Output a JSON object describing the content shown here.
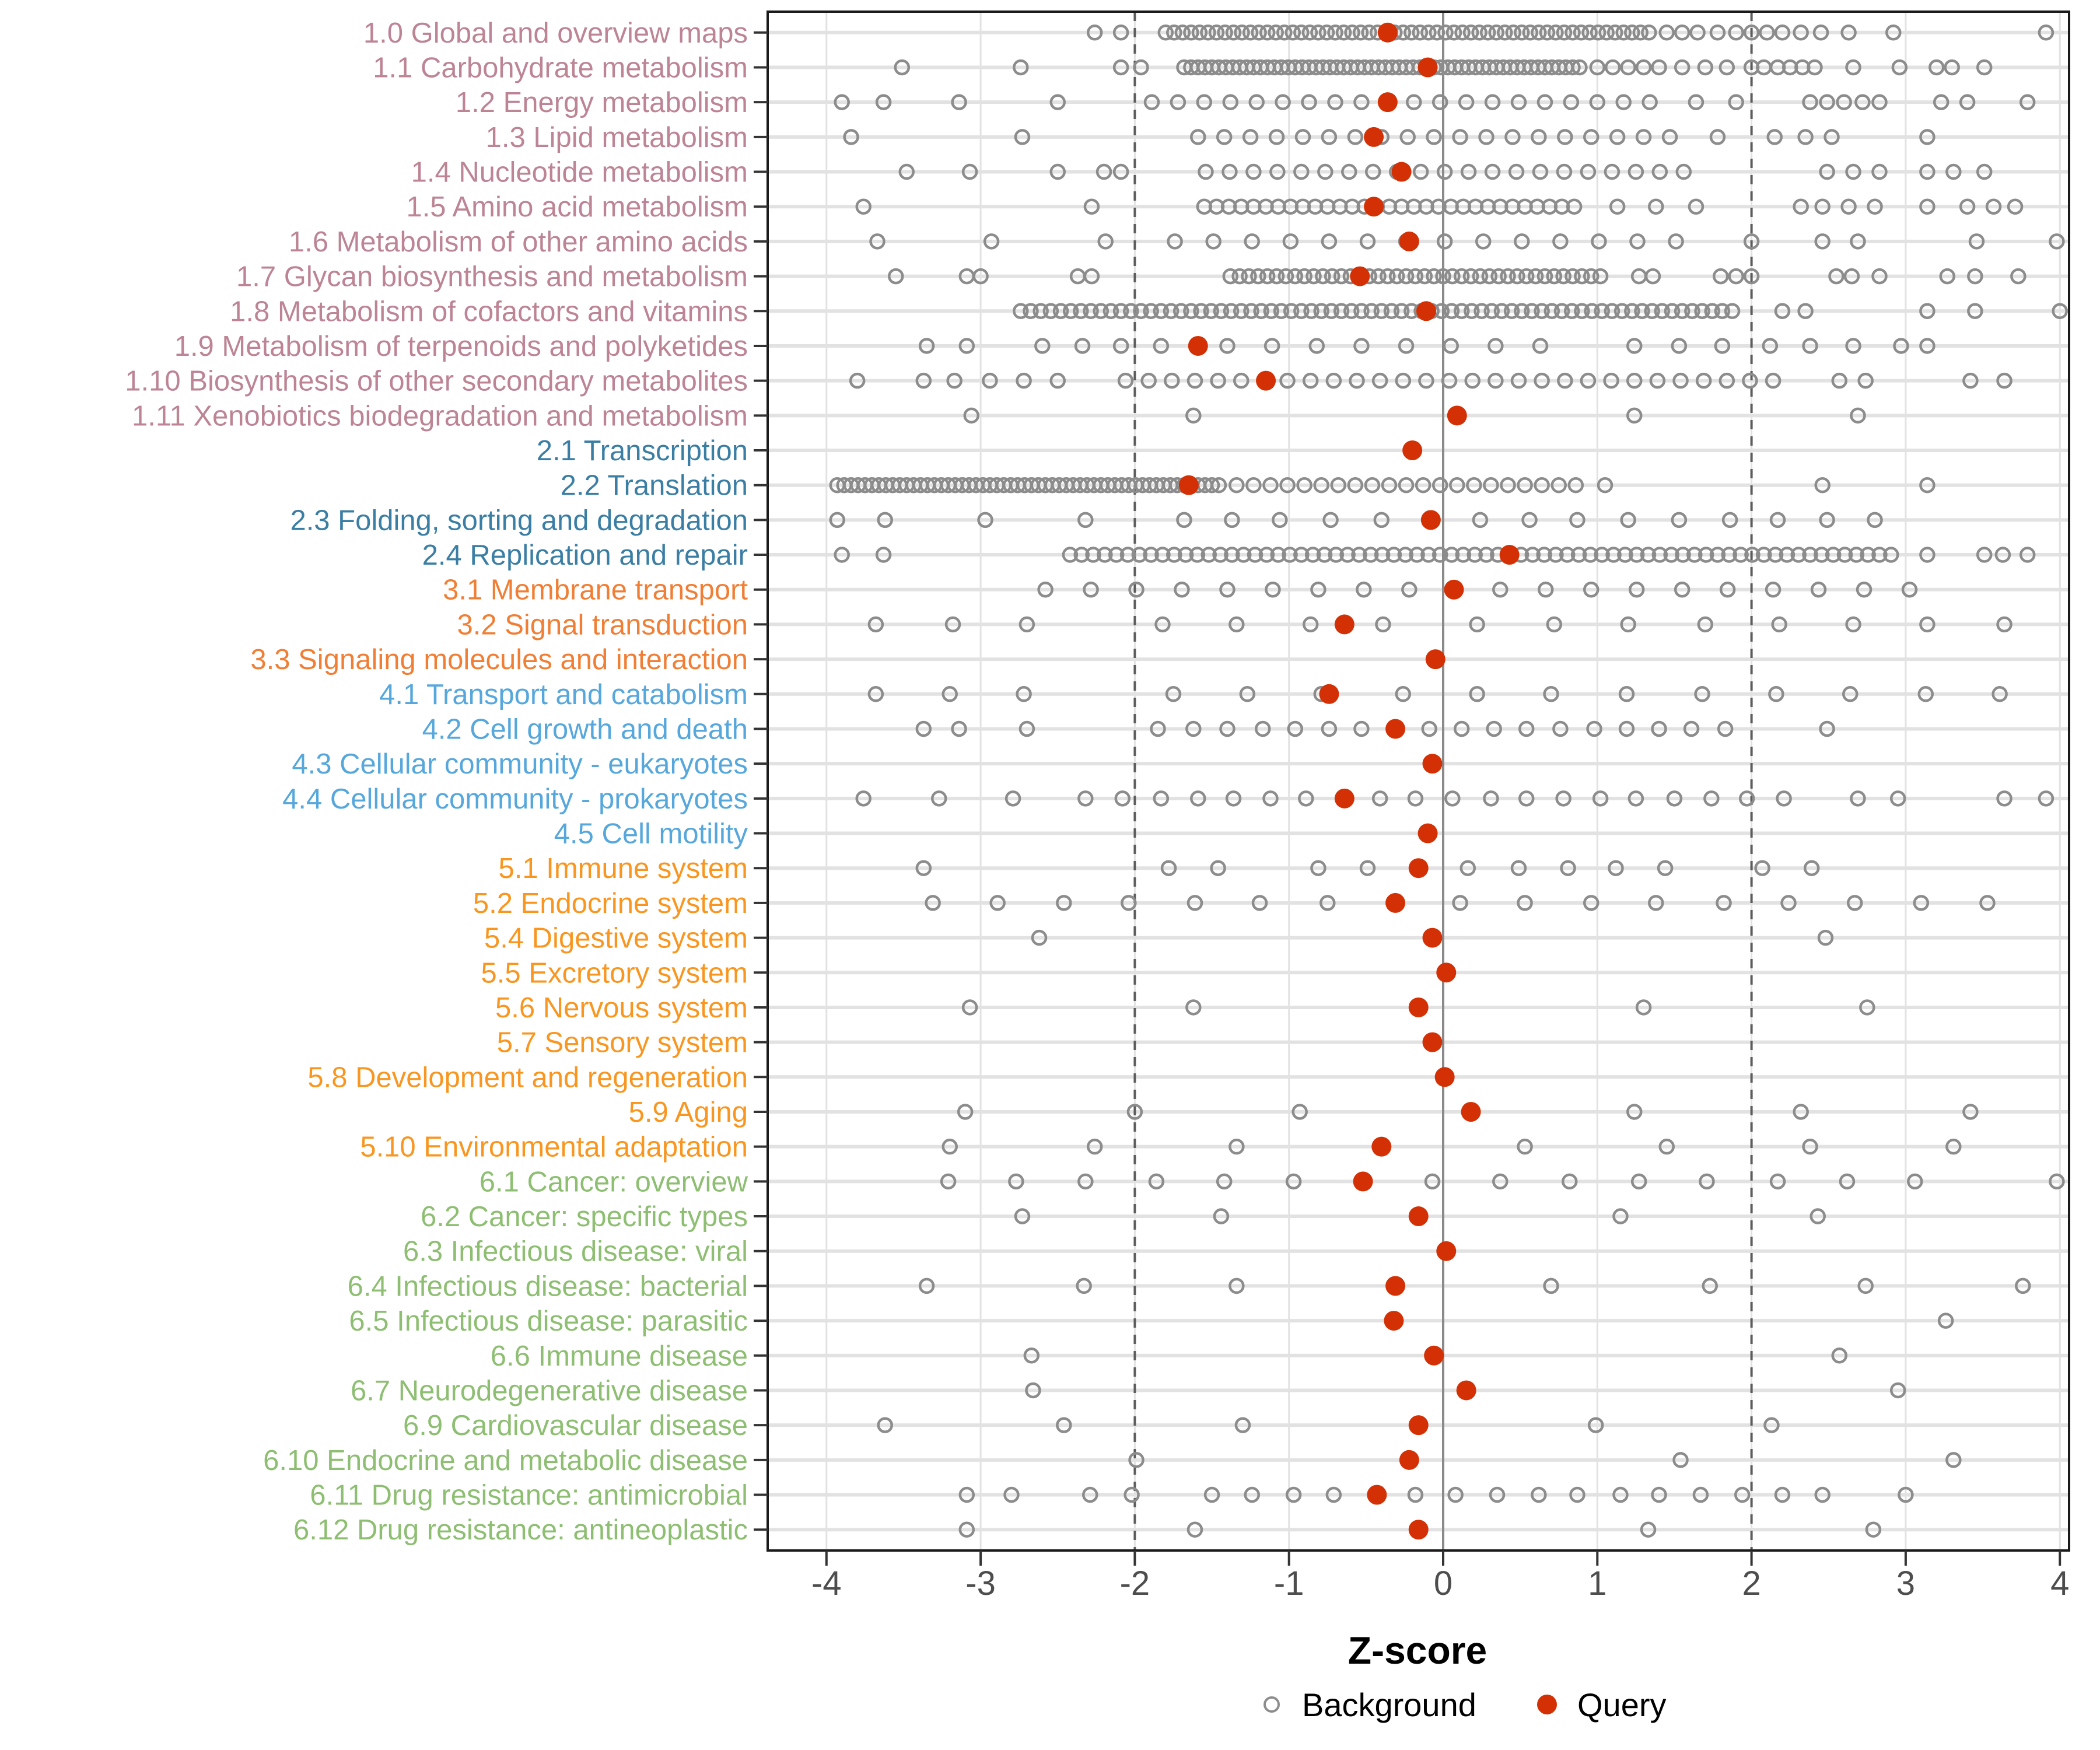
{
  "chart_data": {
    "type": "scatter",
    "variant": "categorical-strip-plot",
    "title": "",
    "xlabel": "Z-score",
    "x_ticks": [
      -4,
      -3,
      -2,
      -1,
      0,
      1,
      2,
      3,
      4
    ],
    "xlim": [
      -4.38,
      4.07
    ],
    "grid": "on",
    "reference_lines": {
      "solid": [
        0
      ],
      "dashed": [
        -2,
        2
      ]
    },
    "legend_position": "bottom",
    "legend": [
      {
        "label": "Background",
        "marker": "open-circle",
        "color": "#8C8C8C"
      },
      {
        "label": "Query",
        "marker": "filled-circle",
        "color": "#D33105"
      }
    ],
    "group_colors": {
      "1": "#BC8494",
      "2": "#3B7EA4",
      "3": "#F07E34",
      "4": "#56A7DB",
      "5": "#F89620",
      "6": "#8DBE71"
    },
    "style": {
      "background_stroke": "#8C8C8C",
      "query_fill": "#D33105",
      "gridline_color": "#E2E2E2",
      "zero_line_color": "#8A8A8A",
      "dashed_line_color": "#5C5C5C",
      "axis_text_color": "#4D4D4D",
      "panel_border_color": "#1A1A1A"
    },
    "categories": [
      {
        "label": "1.0 Global and overview maps",
        "group": "1",
        "query": -0.36,
        "background": [
          -2.26,
          -2.09,
          {
            "from": -1.8,
            "to": 1.35,
            "step": 0.055
          },
          1.45,
          1.55,
          1.65,
          1.78,
          1.9,
          2.0,
          2.1,
          2.2,
          2.32,
          2.45,
          2.63,
          2.92,
          3.91
        ]
      },
      {
        "label": "1.1 Carbohydrate metabolism",
        "group": "1",
        "query": -0.1,
        "background": [
          -3.51,
          -2.74,
          -2.09,
          -1.96,
          {
            "from": -1.68,
            "to": 0.9,
            "step": 0.045
          },
          1.0,
          1.1,
          1.2,
          1.3,
          1.4,
          1.55,
          1.7,
          1.84,
          2.0,
          2.08,
          2.17,
          2.25,
          2.33,
          2.41,
          2.66,
          2.96,
          3.2,
          3.3,
          3.51
        ]
      },
      {
        "label": "1.2 Energy metabolism",
        "group": "1",
        "query": -0.36,
        "background": [
          -3.9,
          -3.63,
          -3.14,
          -2.5,
          {
            "from": -1.89,
            "to": 1.48,
            "step": 0.17
          },
          1.64,
          1.9,
          2.38,
          2.49,
          2.6,
          2.72,
          2.83,
          3.23,
          3.4,
          3.79
        ]
      },
      {
        "label": "1.3 Lipid metabolism",
        "group": "1",
        "query": -0.45,
        "background": [
          -3.84,
          -2.73,
          {
            "from": -1.59,
            "to": 1.47,
            "step": 0.17
          },
          1.78,
          2.15,
          2.35,
          2.52,
          3.14
        ]
      },
      {
        "label": "1.4 Nucleotide metabolism",
        "group": "1",
        "query": -0.27,
        "background": [
          -3.48,
          -3.07,
          -2.5,
          -2.2,
          -2.09,
          {
            "from": -1.54,
            "to": 1.56,
            "step": 0.155
          },
          2.49,
          2.66,
          2.83,
          3.14,
          3.31,
          3.51
        ]
      },
      {
        "label": "1.5 Amino acid metabolism",
        "group": "1",
        "query": -0.45,
        "background": [
          -3.76,
          -2.28,
          {
            "from": -1.55,
            "to": 0.9,
            "step": 0.08
          },
          1.13,
          1.38,
          1.64,
          2.32,
          2.46,
          2.63,
          2.8,
          3.14,
          3.4,
          3.57,
          3.71
        ]
      },
      {
        "label": "1.6 Metabolism of other amino acids",
        "group": "1",
        "query": -0.22,
        "background": [
          -3.67,
          -2.93,
          -2.19,
          {
            "from": -1.74,
            "to": 1.75,
            "step": 0.25
          },
          2.0,
          2.46,
          2.69,
          3.46,
          3.98
        ]
      },
      {
        "label": "1.7 Glycan biosynthesis and metabolism",
        "group": "1",
        "query": -0.54,
        "background": [
          -3.55,
          -3.09,
          -3.0,
          -2.37,
          -2.28,
          {
            "from": -1.38,
            "to": 1.02,
            "step": 0.06
          },
          1.27,
          1.36,
          1.8,
          1.9,
          2.0,
          2.55,
          2.65,
          2.83,
          3.27,
          3.45,
          3.73
        ]
      },
      {
        "label": "1.8 Metabolism of cofactors and vitamins",
        "group": "1",
        "query": -0.11,
        "background": [
          {
            "from": -2.74,
            "to": 1.9,
            "step": 0.065
          },
          2.2,
          2.35,
          3.14,
          3.45,
          4.0
        ]
      },
      {
        "label": "1.9 Metabolism of terpenoids and polyketides",
        "group": "1",
        "query": -1.59,
        "background": [
          -3.35,
          -3.09,
          -2.6,
          -2.34,
          -2.09,
          -1.83,
          {
            "from": -1.4,
            "to": 0.9,
            "step": 0.29
          },
          1.24,
          1.53,
          1.81,
          2.12,
          2.38,
          2.66,
          2.97,
          3.14
        ]
      },
      {
        "label": "1.10 Biosynthesis of other secondary metabolites",
        "group": "1",
        "query": -1.15,
        "background": [
          -3.8,
          -3.37,
          -3.17,
          -2.94,
          -2.72,
          -2.5,
          {
            "from": -2.06,
            "to": 2.28,
            "step": 0.15
          },
          2.57,
          2.74,
          3.42,
          3.64
        ]
      },
      {
        "label": "1.11 Xenobiotics biodegradation and metabolism",
        "group": "1",
        "query": 0.09,
        "background": [
          -3.06,
          -1.62,
          1.24,
          2.69
        ]
      },
      {
        "label": "2.1 Transcription",
        "group": "2",
        "query": -0.2,
        "background": []
      },
      {
        "label": "2.2 Translation",
        "group": "2",
        "query": -1.65,
        "background": [
          {
            "from": -3.93,
            "to": -1.45,
            "step": 0.045
          },
          {
            "from": -1.34,
            "to": 0.87,
            "step": 0.11
          },
          1.05,
          2.46,
          3.14
        ]
      },
      {
        "label": "2.3 Folding, sorting and degradation",
        "group": "2",
        "query": -0.08,
        "background": [
          -3.93,
          -3.62,
          -2.97,
          -2.32,
          -1.68,
          -1.37,
          -1.06,
          -0.73,
          -0.4,
          0.24,
          0.56,
          0.87,
          1.2,
          1.53,
          1.86,
          2.17,
          2.49,
          2.8
        ]
      },
      {
        "label": "2.4 Replication and repair",
        "group": "2",
        "query": 0.43,
        "background": [
          -3.9,
          -3.63,
          {
            "from": -2.42,
            "to": 2.92,
            "step": 0.075
          },
          3.14,
          3.51,
          3.63,
          3.79
        ]
      },
      {
        "label": "3.1 Membrane transport",
        "group": "3",
        "query": 0.07,
        "background": [
          {
            "from": -2.58,
            "to": 3.03,
            "step": 0.295
          }
        ]
      },
      {
        "label": "3.2 Signal transduction",
        "group": "3",
        "query": -0.64,
        "background": [
          -3.68,
          -3.18,
          -2.7,
          -1.82,
          -1.34,
          -0.86,
          -0.39,
          0.22,
          0.72,
          1.2,
          1.7,
          2.18,
          2.66,
          3.14,
          3.64
        ]
      },
      {
        "label": "3.3 Signaling molecules and interaction",
        "group": "3",
        "query": -0.05,
        "background": []
      },
      {
        "label": "4.1 Transport and catabolism",
        "group": "4",
        "query": -0.74,
        "background": [
          -3.68,
          -3.2,
          -2.72,
          -1.75,
          -1.27,
          -0.79,
          -0.26,
          0.22,
          0.7,
          1.19,
          1.68,
          2.16,
          2.64,
          3.13,
          3.61
        ]
      },
      {
        "label": "4.2 Cell growth and death",
        "group": "4",
        "query": -0.31,
        "background": [
          -3.37,
          -3.14,
          -2.7,
          -1.85,
          -1.62,
          -1.4,
          -1.17,
          -0.96,
          -0.74,
          -0.53,
          -0.09,
          0.12,
          0.33,
          0.54,
          0.76,
          0.98,
          1.19,
          1.4,
          1.61,
          1.83,
          2.49
        ]
      },
      {
        "label": "4.3 Cellular community - eukaryotes",
        "group": "4",
        "query": -0.07,
        "background": []
      },
      {
        "label": "4.4 Cellular community - prokaryotes",
        "group": "4",
        "query": -0.64,
        "background": [
          -3.76,
          -3.27,
          -2.79,
          -2.32,
          -2.08,
          -1.83,
          -1.59,
          -1.36,
          -1.12,
          -0.89,
          -0.41,
          -0.18,
          0.06,
          0.31,
          0.54,
          0.78,
          1.02,
          1.25,
          1.5,
          1.74,
          1.97,
          2.21,
          2.69,
          2.95,
          3.64,
          3.91
        ]
      },
      {
        "label": "4.5 Cell motility",
        "group": "4",
        "query": -0.1,
        "background": []
      },
      {
        "label": "5.1 Immune system",
        "group": "5",
        "query": -0.16,
        "background": [
          -3.37,
          -1.78,
          -1.46,
          -0.81,
          -0.49,
          0.16,
          0.49,
          0.81,
          1.12,
          1.44,
          2.07,
          2.39
        ]
      },
      {
        "label": "5.2 Endocrine system",
        "group": "5",
        "query": -0.31,
        "background": [
          -3.31,
          -2.89,
          -2.46,
          -2.04,
          -1.61,
          -1.19,
          -0.75,
          0.11,
          0.53,
          0.96,
          1.38,
          1.82,
          2.24,
          2.67,
          3.1,
          3.53
        ]
      },
      {
        "label": "5.4 Digestive system",
        "group": "5",
        "query": -0.07,
        "background": [
          -2.62,
          2.48
        ]
      },
      {
        "label": "5.5 Excretory system",
        "group": "5",
        "query": 0.02,
        "background": []
      },
      {
        "label": "5.6 Nervous system",
        "group": "5",
        "query": -0.16,
        "background": [
          -3.07,
          -1.62,
          1.3,
          2.75
        ]
      },
      {
        "label": "5.7 Sensory system",
        "group": "5",
        "query": -0.07,
        "background": []
      },
      {
        "label": "5.8 Development and regeneration",
        "group": "5",
        "query": 0.01,
        "background": []
      },
      {
        "label": "5.9 Aging",
        "group": "5",
        "query": 0.18,
        "background": [
          -3.1,
          -2.0,
          -0.93,
          1.24,
          2.32,
          3.42
        ]
      },
      {
        "label": "5.10 Environmental adaptation",
        "group": "5",
        "query": -0.4,
        "background": [
          -3.2,
          -2.26,
          -1.34,
          0.53,
          1.45,
          2.38,
          3.31
        ]
      },
      {
        "label": "6.1 Cancer: overview",
        "group": "6",
        "query": -0.52,
        "background": [
          -3.21,
          -2.77,
          -2.32,
          -1.86,
          -1.42,
          -0.97,
          -0.07,
          0.37,
          0.82,
          1.27,
          1.71,
          2.17,
          2.62,
          3.06,
          3.98
        ]
      },
      {
        "label": "6.2 Cancer: specific types",
        "group": "6",
        "query": -0.16,
        "background": [
          -2.73,
          -1.44,
          1.15,
          2.43
        ]
      },
      {
        "label": "6.3 Infectious disease: viral",
        "group": "6",
        "query": 0.02,
        "background": []
      },
      {
        "label": "6.4 Infectious disease: bacterial",
        "group": "6",
        "query": -0.31,
        "background": [
          -3.35,
          -2.33,
          -1.34,
          0.7,
          1.73,
          2.74,
          3.76
        ]
      },
      {
        "label": "6.5 Infectious disease: parasitic",
        "group": "6",
        "query": -0.32,
        "background": [
          3.26
        ]
      },
      {
        "label": "6.6 Immune disease",
        "group": "6",
        "query": -0.06,
        "background": [
          -2.67,
          2.57
        ]
      },
      {
        "label": "6.7 Neurodegenerative disease",
        "group": "6",
        "query": 0.15,
        "background": [
          -2.66,
          2.95
        ]
      },
      {
        "label": "6.9 Cardiovascular disease",
        "group": "6",
        "query": -0.16,
        "background": [
          -3.62,
          -2.46,
          -1.3,
          0.99,
          2.13
        ]
      },
      {
        "label": "6.10 Endocrine and metabolic disease",
        "group": "6",
        "query": -0.22,
        "background": [
          -1.99,
          1.54,
          3.31
        ]
      },
      {
        "label": "6.11 Drug resistance: antimicrobial",
        "group": "6",
        "query": -0.43,
        "background": [
          -3.09,
          -2.8,
          -2.29,
          -2.02,
          -1.5,
          -1.24,
          -0.97,
          -0.71,
          -0.18,
          0.08,
          0.35,
          0.62,
          0.87,
          1.15,
          1.4,
          1.67,
          1.94,
          2.2,
          2.46,
          3.0
        ]
      },
      {
        "label": "6.12 Drug resistance: antineoplastic",
        "group": "6",
        "query": -0.16,
        "background": [
          -3.09,
          -1.61,
          1.33,
          2.79
        ]
      }
    ]
  }
}
